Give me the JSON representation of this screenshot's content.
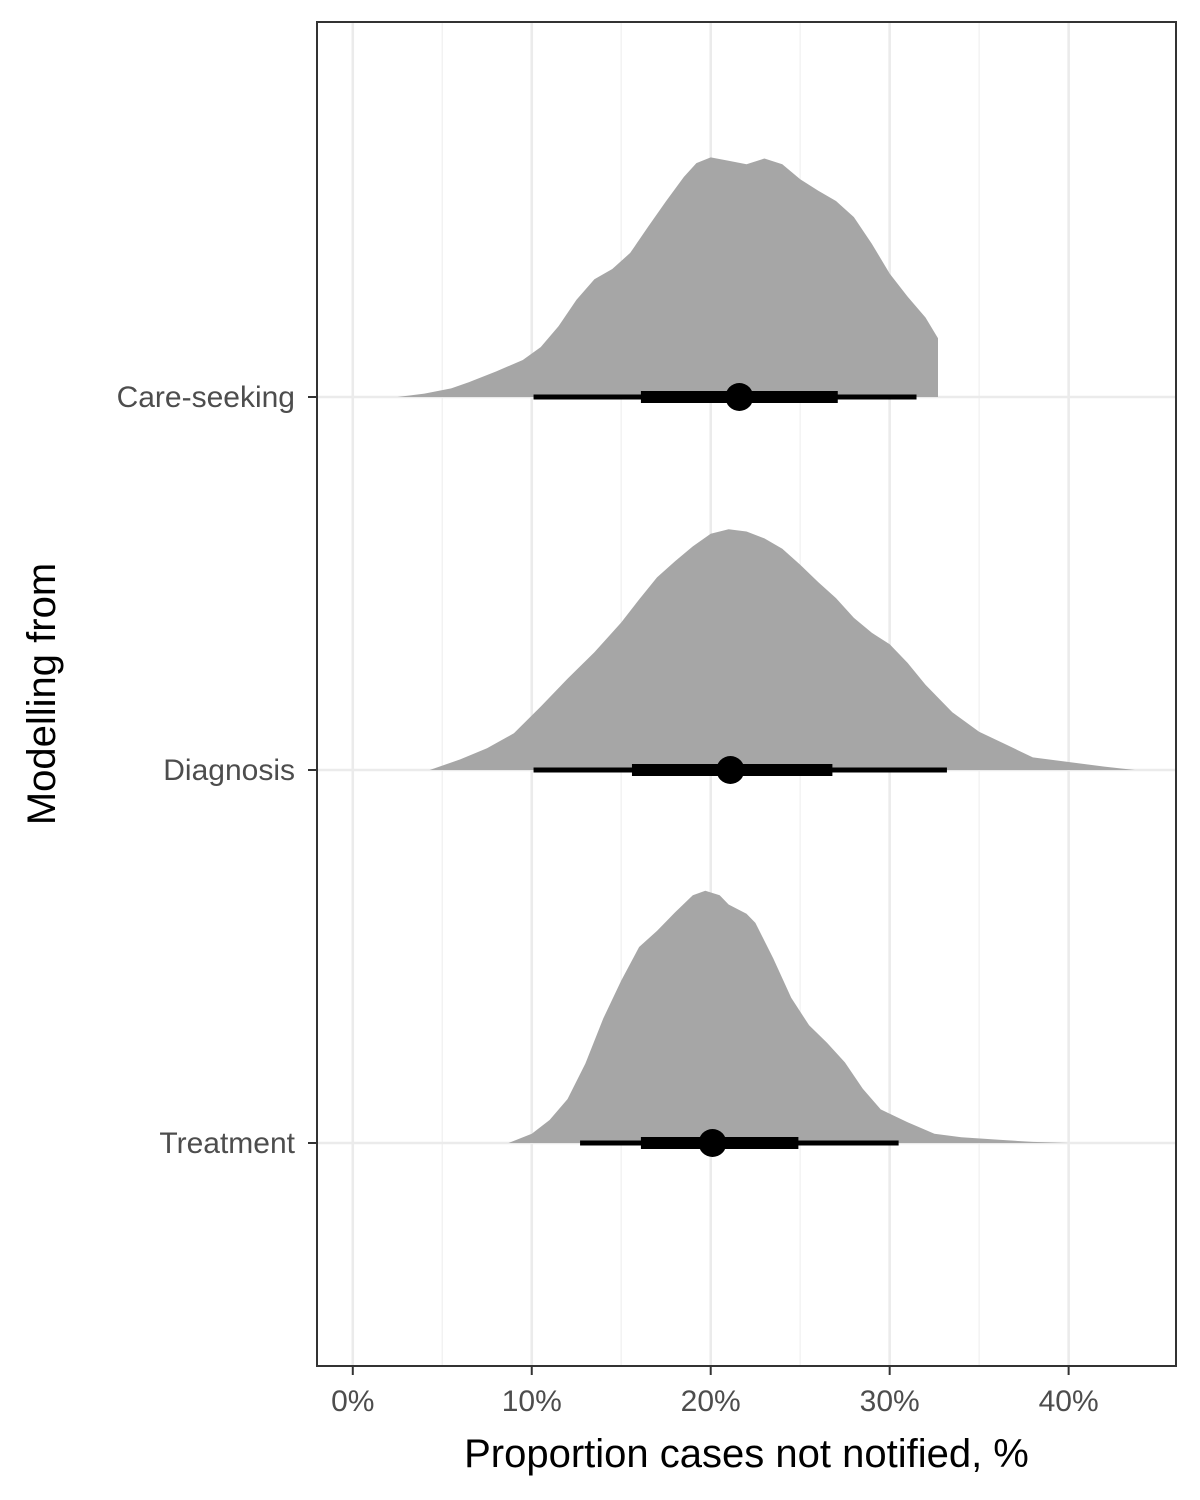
{
  "chart_data": {
    "type": "halfeye",
    "title": "",
    "xlabel": "Proportion cases not notified, %",
    "ylabel": "Modelling from",
    "xlim": [
      -0.02,
      0.46
    ],
    "x_ticks": [
      0,
      0.1,
      0.2,
      0.3,
      0.4
    ],
    "x_tick_labels": [
      "0%",
      "10%",
      "20%",
      "30%",
      "40%"
    ],
    "grid": true,
    "categories": [
      "Care-seeking",
      "Diagnosis",
      "Treatment"
    ],
    "series": [
      {
        "category": "Care-seeking",
        "point": 0.216,
        "interval_66": [
          0.161,
          0.271
        ],
        "interval_95": [
          0.101,
          0.315
        ],
        "density": [
          [
            0.025,
            0.0
          ],
          [
            0.04,
            0.012
          ],
          [
            0.055,
            0.03
          ],
          [
            0.065,
            0.052
          ],
          [
            0.08,
            0.089
          ],
          [
            0.095,
            0.129
          ],
          [
            0.105,
            0.174
          ],
          [
            0.115,
            0.247
          ],
          [
            0.125,
            0.339
          ],
          [
            0.135,
            0.41
          ],
          [
            0.145,
            0.446
          ],
          [
            0.155,
            0.502
          ],
          [
            0.165,
            0.593
          ],
          [
            0.175,
            0.682
          ],
          [
            0.185,
            0.767
          ],
          [
            0.192,
            0.815
          ],
          [
            0.2,
            0.835
          ],
          [
            0.21,
            0.823
          ],
          [
            0.22,
            0.811
          ],
          [
            0.23,
            0.831
          ],
          [
            0.24,
            0.811
          ],
          [
            0.25,
            0.759
          ],
          [
            0.26,
            0.719
          ],
          [
            0.27,
            0.683
          ],
          [
            0.28,
            0.627
          ],
          [
            0.29,
            0.534
          ],
          [
            0.3,
            0.43
          ],
          [
            0.31,
            0.35
          ],
          [
            0.32,
            0.277
          ],
          [
            0.327,
            0.205
          ],
          [
            0.327,
            0.0
          ]
        ]
      },
      {
        "category": "Diagnosis",
        "point": 0.211,
        "interval_66": [
          0.156,
          0.268
        ],
        "interval_95": [
          0.101,
          0.332
        ],
        "density": [
          [
            0.043,
            0.0
          ],
          [
            0.06,
            0.037
          ],
          [
            0.075,
            0.076
          ],
          [
            0.09,
            0.128
          ],
          [
            0.105,
            0.221
          ],
          [
            0.12,
            0.318
          ],
          [
            0.135,
            0.41
          ],
          [
            0.15,
            0.514
          ],
          [
            0.16,
            0.594
          ],
          [
            0.17,
            0.671
          ],
          [
            0.18,
            0.727
          ],
          [
            0.19,
            0.779
          ],
          [
            0.2,
            0.823
          ],
          [
            0.21,
            0.839
          ],
          [
            0.22,
            0.831
          ],
          [
            0.23,
            0.807
          ],
          [
            0.24,
            0.771
          ],
          [
            0.25,
            0.715
          ],
          [
            0.26,
            0.655
          ],
          [
            0.27,
            0.599
          ],
          [
            0.28,
            0.53
          ],
          [
            0.29,
            0.478
          ],
          [
            0.3,
            0.438
          ],
          [
            0.31,
            0.373
          ],
          [
            0.32,
            0.297
          ],
          [
            0.335,
            0.201
          ],
          [
            0.35,
            0.133
          ],
          [
            0.365,
            0.089
          ],
          [
            0.38,
            0.044
          ],
          [
            0.4,
            0.028
          ],
          [
            0.42,
            0.012
          ],
          [
            0.437,
            0.0
          ]
        ]
      },
      {
        "category": "Treatment",
        "point": 0.201,
        "interval_66": [
          0.161,
          0.249
        ],
        "interval_95": [
          0.127,
          0.305
        ],
        "density": [
          [
            0.087,
            0.0
          ],
          [
            0.1,
            0.032
          ],
          [
            0.11,
            0.08
          ],
          [
            0.12,
            0.153
          ],
          [
            0.13,
            0.277
          ],
          [
            0.14,
            0.434
          ],
          [
            0.15,
            0.566
          ],
          [
            0.16,
            0.683
          ],
          [
            0.17,
            0.739
          ],
          [
            0.18,
            0.803
          ],
          [
            0.19,
            0.863
          ],
          [
            0.197,
            0.879
          ],
          [
            0.205,
            0.863
          ],
          [
            0.21,
            0.831
          ],
          [
            0.22,
            0.799
          ],
          [
            0.225,
            0.767
          ],
          [
            0.235,
            0.643
          ],
          [
            0.245,
            0.506
          ],
          [
            0.255,
            0.41
          ],
          [
            0.265,
            0.349
          ],
          [
            0.275,
            0.281
          ],
          [
            0.285,
            0.189
          ],
          [
            0.295,
            0.117
          ],
          [
            0.31,
            0.072
          ],
          [
            0.325,
            0.032
          ],
          [
            0.34,
            0.02
          ],
          [
            0.36,
            0.012
          ],
          [
            0.38,
            0.004
          ],
          [
            0.4,
            0.0
          ]
        ]
      }
    ],
    "colors": {
      "density_fill": "#a6a6a6",
      "interval": "#000000",
      "grid_major": "#ebebeb",
      "grid_minor": "#f2f2f2",
      "panel_border": "#333333",
      "tick_text": "#4d4d4d"
    }
  }
}
